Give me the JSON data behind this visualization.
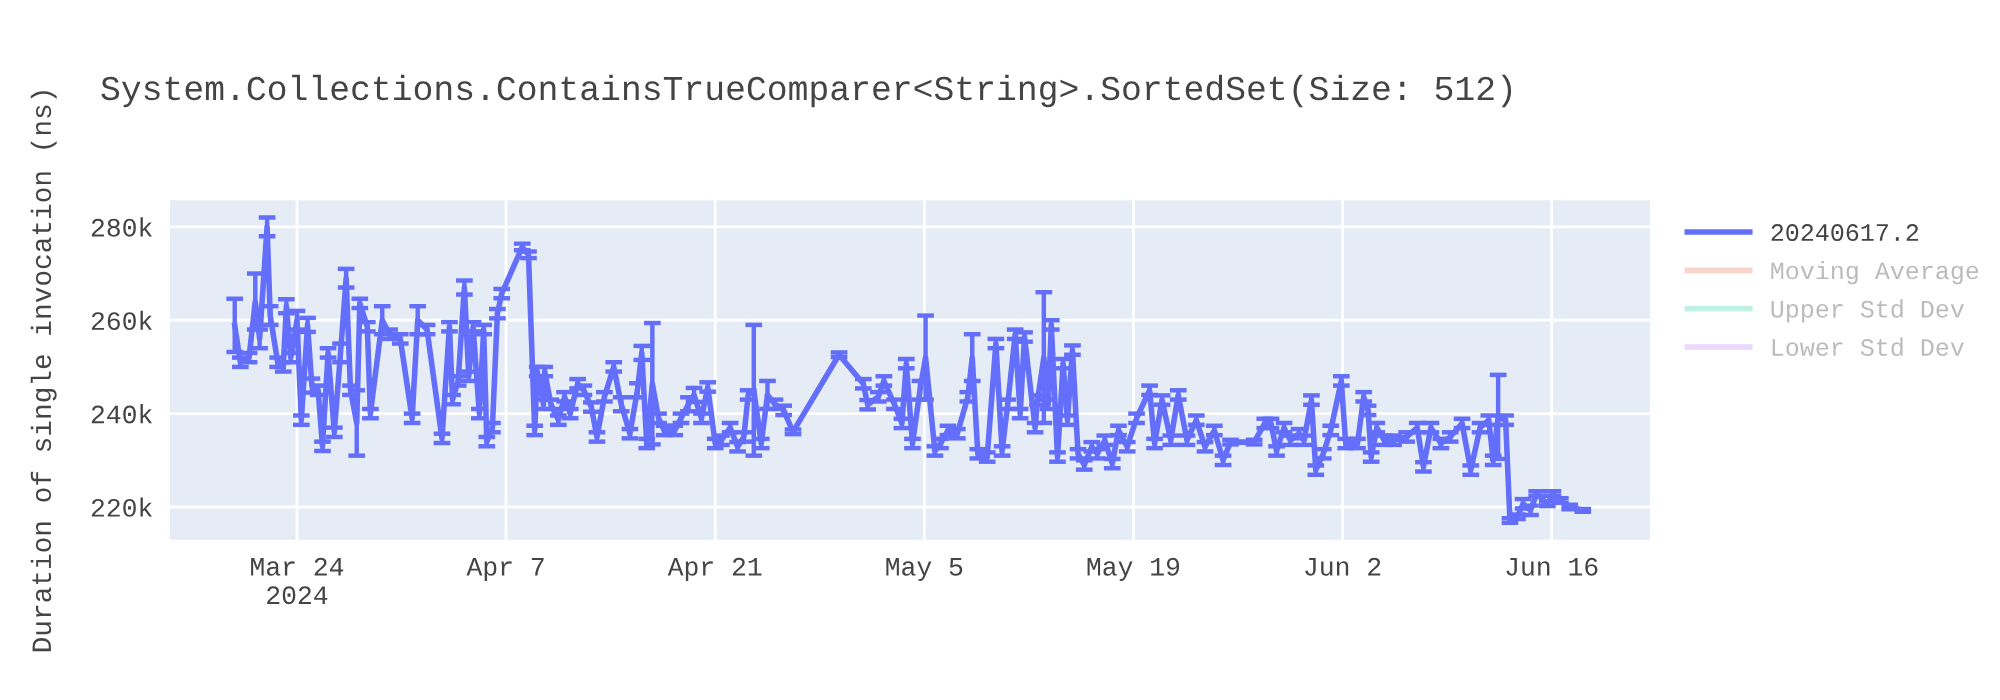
{
  "chart_data": {
    "type": "line",
    "title": "System.Collections.ContainsTrueComparer<String>.SortedSet(Size: 512)",
    "ylabel": "Duration of single invocation (ns)",
    "x": [
      "2024-03-19T20:00",
      "2024-03-20T05:00",
      "2024-03-20T19:00",
      "2024-03-21T05:00",
      "2024-03-21T12:00",
      "2024-03-22T00:00",
      "2024-03-22T05:00",
      "2024-03-22T17:00",
      "2024-03-23T02:00",
      "2024-03-23T07:00",
      "2024-03-23T14:00",
      "2024-03-24T00:00",
      "2024-03-24T07:00",
      "2024-03-24T17:00",
      "2024-03-25T00:00",
      "2024-03-25T10:00",
      "2024-03-25T17:00",
      "2024-03-26T02:00",
      "2024-03-26T12:00",
      "2024-03-26T22:00",
      "2024-03-27T07:00",
      "2024-03-27T14:00",
      "2024-03-28T00:00",
      "2024-03-28T05:00",
      "2024-03-28T17:00",
      "2024-03-28T22:00",
      "2024-03-29T17:00",
      "2024-03-30T05:00",
      "2024-03-30T22:00",
      "2024-03-31T17:00",
      "2024-04-01T02:00",
      "2024-04-01T17:00",
      "2024-04-02T17:00",
      "2024-04-03T05:00",
      "2024-04-03T10:00",
      "2024-04-03T19:00",
      "2024-04-04T05:00",
      "2024-04-04T12:00",
      "2024-04-04T19:00",
      "2024-04-05T05:00",
      "2024-04-05T12:00",
      "2024-04-05T17:00",
      "2024-04-06T02:00",
      "2024-04-06T10:00",
      "2024-04-06T17:00",
      "2024-04-08T02:00",
      "2024-04-08T12:00",
      "2024-04-08T22:00",
      "2024-04-09T02:00",
      "2024-04-09T12:00",
      "2024-04-09T14:00",
      "2024-04-10T00:00",
      "2024-04-10T12:00",
      "2024-04-10T22:00",
      "2024-04-11T07:00",
      "2024-04-11T19:00",
      "2024-04-12T05:00",
      "2024-04-12T17:00",
      "2024-04-13T02:00",
      "2024-04-13T14:00",
      "2024-04-14T05:00",
      "2024-04-14T17:00",
      "2024-04-15T07:00",
      "2024-04-15T19:00",
      "2024-04-16T02:00",
      "2024-04-16T10:00",
      "2024-04-16T19:00",
      "2024-04-17T05:00",
      "2024-04-17T14:00",
      "2024-04-18T07:00",
      "2024-04-18T17:00",
      "2024-04-19T05:00",
      "2024-04-19T14:00",
      "2024-04-20T02:00",
      "2024-04-20T12:00",
      "2024-04-21T00:00",
      "2024-04-21T10:00",
      "2024-04-22T00:00",
      "2024-04-22T12:00",
      "2024-04-22T22:00",
      "2024-04-23T05:00",
      "2024-04-23T14:00",
      "2024-04-24T02:00",
      "2024-04-24T12:00",
      "2024-04-25T00:00",
      "2024-04-25T14:00",
      "2024-04-26T05:00",
      "2024-04-29T07:00",
      "2024-04-30T22:00",
      "2024-05-01T05:00",
      "2024-05-01T22:00",
      "2024-05-02T07:00",
      "2024-05-03T00:00",
      "2024-05-03T12:00",
      "2024-05-03T19:00",
      "2024-05-04T05:00",
      "2024-05-04T17:00",
      "2024-05-05T02:00",
      "2024-05-05T17:00",
      "2024-05-06T02:00",
      "2024-05-06T14:00",
      "2024-05-07T05:00",
      "2024-05-07T22:00",
      "2024-05-08T05:00",
      "2024-05-08T14:00",
      "2024-05-09T05:00",
      "2024-05-09T19:00",
      "2024-05-10T05:00",
      "2024-05-10T14:00",
      "2024-05-11T02:00",
      "2024-05-11T10:00",
      "2024-05-11T17:00",
      "2024-05-12T10:00",
      "2024-05-12T14:00",
      "2024-05-13T00:00",
      "2024-05-13T07:00",
      "2024-05-13T12:00",
      "2024-05-13T22:00",
      "2024-05-14T07:00",
      "2024-05-14T14:00",
      "2024-05-14T22:00",
      "2024-05-15T07:00",
      "2024-05-15T17:00",
      "2024-05-16T05:00",
      "2024-05-16T14:00",
      "2024-05-17T02:00",
      "2024-05-17T14:00",
      "2024-05-18T00:00",
      "2024-05-18T14:00",
      "2024-05-19T05:00",
      "2024-05-20T02:00",
      "2024-05-20T10:00",
      "2024-05-20T22:00",
      "2024-05-21T12:00",
      "2024-05-22T00:00",
      "2024-05-22T14:00",
      "2024-05-23T05:00",
      "2024-05-23T19:00",
      "2024-05-24T10:00",
      "2024-05-25T00:00",
      "2024-05-25T12:00",
      "2024-05-27T02:00",
      "2024-05-27T19:00",
      "2024-05-28T05:00",
      "2024-05-28T14:00",
      "2024-05-29T02:00",
      "2024-05-29T12:00",
      "2024-05-30T02:00",
      "2024-05-30T10:00",
      "2024-05-30T22:00",
      "2024-05-31T05:00",
      "2024-05-31T17:00",
      "2024-06-01T05:00",
      "2024-06-01T22:00",
      "2024-06-02T05:00",
      "2024-06-03T00:00",
      "2024-06-03T10:00",
      "2024-06-03T17:00",
      "2024-06-03T22:00",
      "2024-06-04T07:00",
      "2024-06-04T19:00",
      "2024-06-05T10:00",
      "2024-06-06T07:00",
      "2024-06-07T00:00",
      "2024-06-07T10:00",
      "2024-06-07T22:00",
      "2024-06-08T14:00",
      "2024-06-09T05:00",
      "2024-06-10T00:00",
      "2024-06-10T14:00",
      "2024-06-11T05:00",
      "2024-06-11T19:00",
      "2024-06-12T02:00",
      "2024-06-12T10:00",
      "2024-06-12T22:00",
      "2024-06-13T05:00",
      "2024-06-13T17:00",
      "2024-06-14T02:00",
      "2024-06-14T14:00",
      "2024-06-15T00:00",
      "2024-06-15T17:00",
      "2024-06-16T02:00",
      "2024-06-16T14:00",
      "2024-06-17T05:00",
      "2024-06-18T02:00"
    ],
    "series": [
      {
        "name": "20240617.2",
        "color": "#636efa",
        "values": [
          258900,
          251000,
          252000,
          264000,
          256000,
          280000,
          261000,
          251000,
          250000,
          263000,
          252000,
          260000,
          238600,
          259000,
          246000,
          245000,
          233000,
          253000,
          236000,
          253000,
          269000,
          245000,
          238000,
          263600,
          258600,
          240000,
          260000,
          257000,
          256000,
          239000,
          260000,
          258000,
          234700,
          258600,
          243000,
          247000,
          267000,
          248000,
          258600,
          240000,
          258000,
          234000,
          237000,
          261400,
          265700,
          275700,
          274000,
          236400,
          249000,
          242000,
          249000,
          242000,
          238600,
          243600,
          240000,
          246400,
          245000,
          241400,
          235000,
          243600,
          250000,
          242000,
          235700,
          245000,
          253000,
          233600,
          246400,
          239000,
          236400,
          236400,
          239000,
          242000,
          244000,
          239000,
          245700,
          233600,
          234300,
          237000,
          232900,
          235000,
          244000,
          245000,
          233600,
          244000,
          242000,
          240700,
          236100,
          252600,
          246400,
          241900,
          243600,
          247000,
          242000,
          237900,
          250700,
          233600,
          245000,
          252000,
          232000,
          233600,
          236400,
          235700,
          243600,
          252000,
          231400,
          230700,
          255000,
          232000,
          242000,
          257000,
          240000,
          256400,
          237000,
          242900,
          252000,
          242000,
          259000,
          230700,
          250700,
          238600,
          253600,
          231400,
          229000,
          232900,
          231400,
          234300,
          229300,
          236400,
          232900,
          239000,
          245000,
          233600,
          242900,
          234300,
          244000,
          234300,
          238600,
          232900,
          236400,
          230000,
          233900,
          233900,
          237900,
          237900,
          232000,
          237000,
          234300,
          235700,
          234300,
          242900,
          227900,
          231400,
          236400,
          247000,
          233600,
          233600,
          243600,
          240700,
          230700,
          237000,
          234300,
          234300,
          235000,
          237000,
          228600,
          237000,
          233600,
          235000,
          237900,
          227900,
          237000,
          238600,
          230000,
          239300,
          238600,
          217100,
          217900,
          220700,
          219300,
          222900,
          220700,
          222900,
          221400,
          220000,
          219300
        ],
        "errors": [
          5700,
          1000,
          1000,
          6000,
          2000,
          2000,
          2000,
          1000,
          1000,
          1500,
          1000,
          2000,
          1000,
          1500,
          1500,
          1000,
          1000,
          1000,
          1000,
          2000,
          2000,
          1000,
          7000,
          1000,
          1000,
          1000,
          3000,
          1000,
          1000,
          1000,
          3000,
          1000,
          1000,
          1000,
          1000,
          1000,
          1500,
          1000,
          1000,
          1000,
          1000,
          1000,
          1000,
          1000,
          1000,
          700,
          700,
          1000,
          1000,
          1000,
          1000,
          1000,
          1000,
          1000,
          1000,
          1000,
          1000,
          1000,
          1000,
          1000,
          1000,
          1500,
          1000,
          1500,
          1500,
          1000,
          13000,
          1000,
          1000,
          1000,
          1000,
          1500,
          1500,
          1000,
          1000,
          1000,
          1000,
          1000,
          1000,
          1000,
          1000,
          14000,
          1000,
          3000,
          1000,
          1000,
          500,
          500,
          1000,
          1000,
          1000,
          1000,
          1000,
          1000,
          1000,
          1000,
          2000,
          9000,
          1000,
          1000,
          1000,
          1000,
          1000,
          5000,
          1000,
          1000,
          1000,
          1000,
          1000,
          1000,
          1000,
          1000,
          1000,
          1000,
          14000,
          1000,
          1000,
          1000,
          1000,
          1000,
          1000,
          1000,
          1000,
          1000,
          1000,
          1000,
          1000,
          1000,
          1000,
          1000,
          1000,
          1000,
          1000,
          1000,
          1000,
          1000,
          1000,
          1000,
          1000,
          1000,
          500,
          500,
          1000,
          1000,
          1000,
          1000,
          1000,
          1000,
          1000,
          1000,
          1000,
          1000,
          1000,
          1000,
          1000,
          1000,
          1000,
          1000,
          1000,
          1000,
          1000,
          1000,
          1000,
          1000,
          1000,
          1000,
          1000,
          1000,
          1000,
          1000,
          1000,
          1000,
          1000,
          9000,
          1000,
          500,
          500,
          1000,
          1000,
          500,
          500,
          500,
          500,
          500,
          300
        ]
      },
      {
        "name": "Moving Average",
        "color": "#f4a996",
        "values": [
          null,
          null,
          null,
          null,
          null,
          null,
          null,
          null,
          null,
          null,
          null,
          null,
          null,
          null,
          null,
          null,
          null,
          null,
          null,
          null,
          null,
          null,
          null,
          null,
          null,
          null,
          null,
          null,
          null,
          null,
          null,
          null,
          null,
          null,
          null,
          null,
          null,
          null,
          null,
          null,
          null,
          null,
          null,
          null,
          null,
          null,
          null,
          null,
          null,
          null,
          null,
          null,
          null,
          null,
          null,
          null,
          null,
          null,
          null,
          null,
          null,
          null,
          null,
          null,
          null,
          null,
          null,
          null,
          null,
          null,
          null,
          null,
          null,
          null,
          null,
          null,
          null,
          null,
          null,
          null,
          null,
          null,
          null,
          null,
          null,
          null,
          null,
          null,
          null,
          null,
          null,
          null,
          null,
          null,
          null,
          null,
          null,
          null,
          null,
          null,
          null,
          null,
          null,
          null,
          null,
          null,
          null,
          null,
          null,
          null,
          null,
          null,
          null,
          null,
          null,
          null,
          null,
          null,
          null,
          null,
          null,
          null,
          null,
          null,
          null,
          null,
          null,
          null,
          null,
          null,
          null,
          null,
          null,
          null,
          null,
          null,
          null,
          null,
          null,
          null,
          null,
          null,
          null,
          null,
          null,
          null,
          null,
          null,
          null,
          null,
          null,
          null,
          null,
          null,
          null,
          null,
          null,
          null,
          null,
          null,
          null,
          null,
          null,
          null,
          null,
          null,
          null,
          null,
          null,
          null,
          null,
          null,
          null,
          null,
          null,
          null,
          null,
          null,
          null,
          null,
          null,
          null,
          null,
          null,
          null
        ]
      },
      {
        "name": "Upper Std Dev",
        "color": "#7fe5ca",
        "values": [
          null,
          null,
          null,
          null,
          null,
          null,
          null,
          null,
          null,
          null,
          null,
          null,
          null,
          null,
          null,
          null,
          null,
          null,
          null,
          null,
          null,
          null,
          null,
          null,
          null,
          null,
          null,
          null,
          null,
          null,
          null,
          null,
          null,
          null,
          null,
          null,
          null,
          null,
          null,
          null,
          null,
          null,
          null,
          null,
          null,
          null,
          null,
          null,
          null,
          null,
          null,
          null,
          null,
          null,
          null,
          null,
          null,
          null,
          null,
          null,
          null,
          null,
          null,
          null,
          null,
          null,
          null,
          null,
          null,
          null,
          null,
          null,
          null,
          null,
          null,
          null,
          null,
          null,
          null,
          null,
          null,
          null,
          null,
          null,
          null,
          null,
          null,
          null,
          null,
          null,
          null,
          null,
          null,
          null,
          null,
          null,
          null,
          null,
          null,
          null,
          null,
          null,
          null,
          null,
          null,
          null,
          null,
          null,
          null,
          null,
          null,
          null,
          null,
          null,
          null,
          null,
          null,
          null,
          null,
          null,
          null,
          null,
          null,
          null,
          null,
          null,
          null,
          null,
          null,
          null,
          null,
          null,
          null,
          null,
          null,
          null,
          null,
          null,
          null,
          null,
          null,
          null,
          null,
          null,
          null,
          null,
          null,
          null,
          null,
          null,
          null,
          null,
          null,
          null,
          null,
          null,
          null,
          null,
          null,
          null,
          null,
          null,
          null,
          null,
          null,
          null,
          null,
          null,
          null,
          null,
          null,
          null,
          null,
          null,
          null,
          null,
          null,
          null,
          null,
          null,
          null,
          null,
          null,
          null,
          null
        ]
      },
      {
        "name": "Lower Std Dev",
        "color": "#d5b1fc",
        "values": [
          null,
          null,
          null,
          null,
          null,
          null,
          null,
          null,
          null,
          null,
          null,
          null,
          null,
          null,
          null,
          null,
          null,
          null,
          null,
          null,
          null,
          null,
          null,
          null,
          null,
          null,
          null,
          null,
          null,
          null,
          null,
          null,
          null,
          null,
          null,
          null,
          null,
          null,
          null,
          null,
          null,
          null,
          null,
          null,
          null,
          null,
          null,
          null,
          null,
          null,
          null,
          null,
          null,
          null,
          null,
          null,
          null,
          null,
          null,
          null,
          null,
          null,
          null,
          null,
          null,
          null,
          null,
          null,
          null,
          null,
          null,
          null,
          null,
          null,
          null,
          null,
          null,
          null,
          null,
          null,
          null,
          null,
          null,
          null,
          null,
          null,
          null,
          null,
          null,
          null,
          null,
          null,
          null,
          null,
          null,
          null,
          null,
          null,
          null,
          null,
          null,
          null,
          null,
          null,
          null,
          null,
          null,
          null,
          null,
          null,
          null,
          null,
          null,
          null,
          null,
          null,
          null,
          null,
          null,
          null,
          null,
          null,
          null,
          null,
          null,
          null,
          null,
          null,
          null,
          null,
          null,
          null,
          null,
          null,
          null,
          null,
          null,
          null,
          null,
          null,
          null,
          null,
          null,
          null,
          null,
          null,
          null,
          null,
          null,
          null,
          null,
          null,
          null,
          null,
          null,
          null,
          null,
          null,
          null,
          null,
          null,
          null,
          null,
          null,
          null,
          null,
          null,
          null,
          null,
          null,
          null,
          null,
          null,
          null,
          null,
          null,
          null,
          null,
          null,
          null,
          null,
          null,
          null,
          null,
          null
        ]
      }
    ],
    "xlim": [
      "2024-03-15T12:00",
      "2024-06-22T14:00"
    ],
    "xticks": [
      {
        "value": "2024-03-24",
        "label": "Mar 24\n2024"
      },
      {
        "value": "2024-04-07",
        "label": "Apr 7"
      },
      {
        "value": "2024-04-21",
        "label": "Apr 21"
      },
      {
        "value": "2024-05-05",
        "label": "May 5"
      },
      {
        "value": "2024-05-19",
        "label": "May 19"
      },
      {
        "value": "2024-06-02",
        "label": "Jun 2"
      },
      {
        "value": "2024-06-16",
        "label": "Jun 16"
      }
    ],
    "ylim": [
      213000,
      285700
    ],
    "yticks": [
      {
        "value": 220000,
        "label": "220k"
      },
      {
        "value": 240000,
        "label": "240k"
      },
      {
        "value": 260000,
        "label": "260k"
      },
      {
        "value": 280000,
        "label": "280k"
      }
    ],
    "grid": true,
    "legend": "right",
    "marker": "none",
    "line_style": "solid"
  }
}
